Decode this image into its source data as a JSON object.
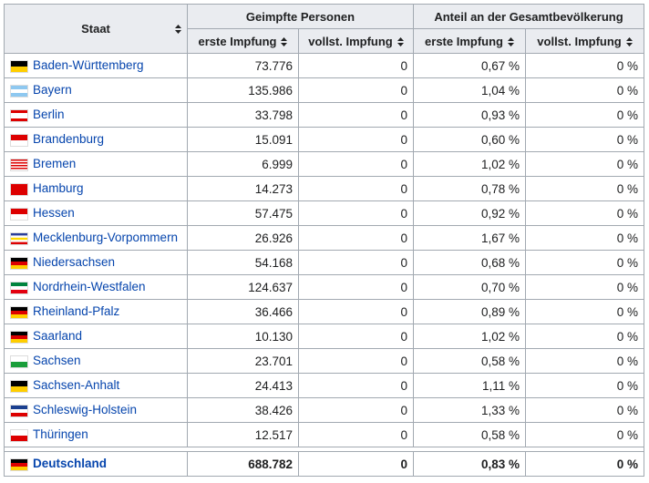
{
  "table": {
    "header": {
      "state": "Staat",
      "group1": "Geimpfte Personen",
      "group2": "Anteil an der Gesamtbevölkerung",
      "columns": [
        "erste Impfung",
        "vollst. Impfung",
        "erste Impfung",
        "vollst. Impfung"
      ]
    },
    "rows": [
      [
        "Baden-Württemberg",
        "73.776",
        "0",
        "0,67 %",
        "0 %"
      ],
      [
        "Bayern",
        "135.986",
        "0",
        "1,04 %",
        "0 %"
      ],
      [
        "Berlin",
        "33.798",
        "0",
        "0,93 %",
        "0 %"
      ],
      [
        "Brandenburg",
        "15.091",
        "0",
        "0,60 %",
        "0 %"
      ],
      [
        "Bremen",
        "6.999",
        "0",
        "1,02 %",
        "0 %"
      ],
      [
        "Hamburg",
        "14.273",
        "0",
        "0,78 %",
        "0 %"
      ],
      [
        "Hessen",
        "57.475",
        "0",
        "0,92 %",
        "0 %"
      ],
      [
        "Mecklenburg-Vorpommern",
        "26.926",
        "0",
        "1,67 %",
        "0 %"
      ],
      [
        "Niedersachsen",
        "54.168",
        "0",
        "0,68 %",
        "0 %"
      ],
      [
        "Nordrhein-Westfalen",
        "124.637",
        "0",
        "0,70 %",
        "0 %"
      ],
      [
        "Rheinland-Pfalz",
        "36.466",
        "0",
        "0,89 %",
        "0 %"
      ],
      [
        "Saarland",
        "10.130",
        "0",
        "1,02 %",
        "0 %"
      ],
      [
        "Sachsen",
        "23.701",
        "0",
        "0,58 %",
        "0 %"
      ],
      [
        "Sachsen-Anhalt",
        "24.413",
        "0",
        "1,11 %",
        "0 %"
      ],
      [
        "Schleswig-Holstein",
        "38.426",
        "0",
        "1,33 %",
        "0 %"
      ],
      [
        "Thüringen",
        "12.517",
        "0",
        "0,58 %",
        "0 %"
      ]
    ],
    "total": [
      "Deutschland",
      "688.782",
      "0",
      "0,83 %",
      "0 %"
    ]
  }
}
